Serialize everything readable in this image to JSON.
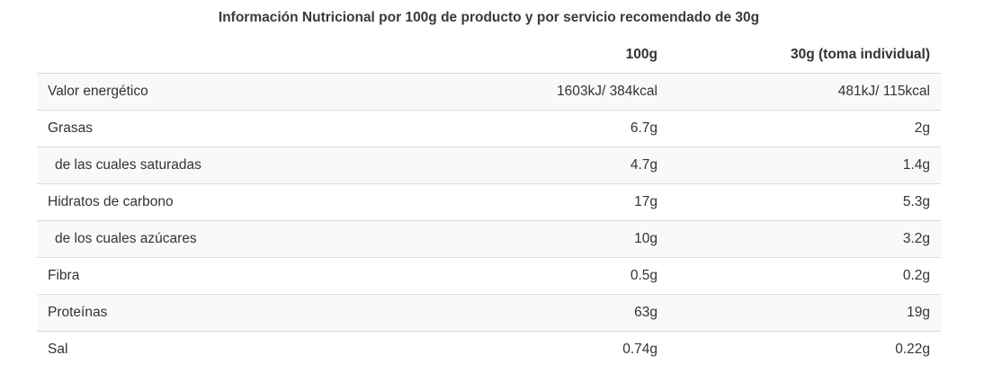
{
  "caption": "Información Nutricional por 100g de producto y por servicio recomendado de 30g",
  "columns": {
    "label": "",
    "per100": "100g",
    "per30": "30g (toma individual)"
  },
  "rows": [
    {
      "label": "Valor energético",
      "per100": "1603kJ/ 384kcal",
      "per30": "481kJ/ 115kcal",
      "sub": false
    },
    {
      "label": "Grasas",
      "per100": "6.7g",
      "per30": "2g",
      "sub": false
    },
    {
      "label": "de las cuales saturadas",
      "per100": "4.7g",
      "per30": "1.4g",
      "sub": true
    },
    {
      "label": "Hidratos de carbono",
      "per100": "17g",
      "per30": "5.3g",
      "sub": false
    },
    {
      "label": "de los cuales azúcares",
      "per100": "10g",
      "per30": "3.2g",
      "sub": true
    },
    {
      "label": "Fibra",
      "per100": "0.5g",
      "per30": "0.2g",
      "sub": false
    },
    {
      "label": "Proteínas",
      "per100": "63g",
      "per30": "19g",
      "sub": false
    },
    {
      "label": "Sal",
      "per100": "0.74g",
      "per30": "0.22g",
      "sub": false
    }
  ]
}
